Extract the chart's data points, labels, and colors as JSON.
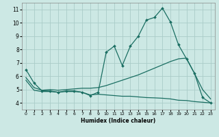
{
  "xlabel": "Humidex (Indice chaleur)",
  "xlim": [
    -0.5,
    23.5
  ],
  "ylim": [
    3.5,
    11.5
  ],
  "yticks": [
    4,
    5,
    6,
    7,
    8,
    9,
    10,
    11
  ],
  "xticks": [
    0,
    1,
    2,
    3,
    4,
    5,
    6,
    7,
    8,
    9,
    10,
    11,
    12,
    13,
    14,
    15,
    16,
    17,
    18,
    19,
    20,
    21,
    22,
    23
  ],
  "background_color": "#cce8e4",
  "grid_color": "#aaccc8",
  "line_color": "#1a6e62",
  "line1_x": [
    0,
    1,
    2,
    3,
    4,
    5,
    6,
    7,
    8,
    9,
    10,
    11,
    12,
    13,
    14,
    15,
    16,
    17,
    18,
    19,
    20,
    21,
    22,
    23
  ],
  "line1_y": [
    6.5,
    5.5,
    4.9,
    4.9,
    4.8,
    4.9,
    4.9,
    4.8,
    4.55,
    4.8,
    7.8,
    8.25,
    6.8,
    8.25,
    9.0,
    10.2,
    10.4,
    11.1,
    10.05,
    8.35,
    7.3,
    6.2,
    4.4,
    4.0
  ],
  "line2_x": [
    0,
    1,
    2,
    3,
    4,
    5,
    6,
    7,
    8,
    9,
    10,
    11,
    12,
    13,
    14,
    15,
    16,
    17,
    18,
    19,
    20,
    21,
    22,
    23
  ],
  "line2_y": [
    5.9,
    5.15,
    4.95,
    5.0,
    4.95,
    5.0,
    5.05,
    5.1,
    5.1,
    5.15,
    5.3,
    5.5,
    5.7,
    5.9,
    6.1,
    6.35,
    6.6,
    6.85,
    7.1,
    7.3,
    7.35,
    6.2,
    5.0,
    4.3
  ],
  "line3_x": [
    0,
    1,
    2,
    3,
    4,
    5,
    6,
    7,
    8,
    9,
    10,
    11,
    12,
    13,
    14,
    15,
    16,
    17,
    18,
    19,
    20,
    21,
    22,
    23
  ],
  "line3_y": [
    5.7,
    4.95,
    4.85,
    4.85,
    4.8,
    4.85,
    4.85,
    4.8,
    4.6,
    4.65,
    4.6,
    4.55,
    4.5,
    4.5,
    4.45,
    4.4,
    4.38,
    4.35,
    4.3,
    4.2,
    4.18,
    4.1,
    4.05,
    4.0
  ]
}
